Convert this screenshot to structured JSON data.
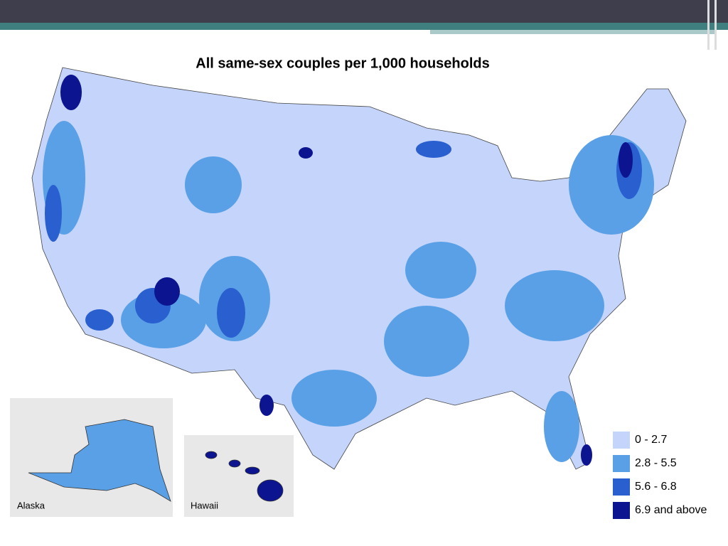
{
  "title": "All same-sex couples per 1,000 households",
  "legend": [
    {
      "label": "0 - 2.7",
      "color": "#c4d4fb"
    },
    {
      "label": "2.8 - 5.5",
      "color": "#5aa0e6"
    },
    {
      "label": "5.6 - 6.8",
      "color": "#2a5fd0"
    },
    {
      "label": "6.9 and above",
      "color": "#0c1490"
    }
  ],
  "insets": [
    {
      "label": "Alaska"
    },
    {
      "label": "Hawaii"
    }
  ]
}
